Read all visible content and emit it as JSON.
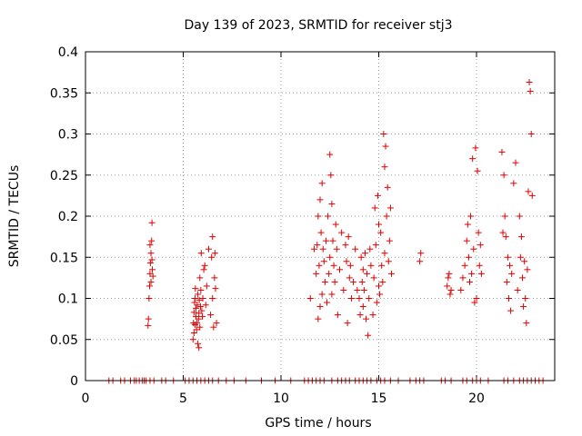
{
  "chart_data": {
    "type": "scatter",
    "title": "Day 139 of 2023, SRMTID for receiver stj3",
    "xlabel": "GPS time / hours",
    "ylabel": "SRMTID / TECUs",
    "xlim": [
      0,
      24
    ],
    "ylim": [
      0,
      0.4
    ],
    "xticks": [
      0,
      5,
      10,
      15,
      20
    ],
    "xtick_labels": [
      "0",
      "5",
      "10",
      "15",
      "20"
    ],
    "yticks": [
      0,
      0.05,
      0.1,
      0.15,
      0.2,
      0.25,
      0.3,
      0.35,
      0.4
    ],
    "ytick_labels": [
      "0",
      "0.05",
      "0.1",
      "0.15",
      "0.2",
      "0.25",
      "0.3",
      "0.35",
      "0.4"
    ],
    "grid": true,
    "marker": "+",
    "color": "#e00000",
    "series": [
      {
        "x": [
          3.2,
          3.22,
          3.25,
          3.28,
          3.3,
          3.3,
          3.32,
          3.35,
          3.35,
          3.38,
          3.4,
          3.4,
          3.42,
          3.45,
          5.5,
          5.52,
          5.55,
          5.55,
          5.58,
          5.6,
          5.6,
          5.62,
          5.65,
          5.65,
          5.68,
          5.7,
          5.72,
          5.75,
          5.75,
          5.78,
          5.8,
          5.8,
          5.82,
          5.85,
          5.85,
          5.88,
          5.9,
          5.92,
          5.95,
          5.98,
          6.0,
          6.05,
          6.1,
          6.15,
          6.2,
          6.3,
          6.4,
          6.45,
          6.5,
          6.5,
          6.55,
          6.6,
          6.62,
          6.65,
          6.7,
          11.5,
          11.7,
          11.8,
          11.85,
          11.9,
          11.9,
          11.95,
          12.0,
          12.0,
          12.05,
          12.1,
          12.1,
          12.15,
          12.2,
          12.25,
          12.3,
          12.35,
          12.4,
          12.45,
          12.5,
          12.5,
          12.55,
          12.6,
          12.6,
          12.65,
          12.7,
          12.75,
          12.8,
          12.85,
          12.9,
          13.0,
          13.1,
          13.2,
          13.3,
          13.35,
          13.4,
          13.45,
          13.5,
          13.55,
          13.6,
          13.7,
          13.8,
          13.9,
          14.0,
          14.05,
          14.1,
          14.15,
          14.2,
          14.2,
          14.25,
          14.3,
          14.35,
          14.4,
          14.45,
          14.5,
          14.55,
          14.6,
          14.7,
          14.75,
          14.8,
          14.85,
          14.9,
          14.95,
          15.0,
          15.0,
          15.05,
          15.1,
          15.15,
          15.2,
          15.25,
          15.3,
          15.3,
          15.35,
          15.4,
          15.45,
          15.5,
          15.55,
          15.6,
          15.65,
          17.1,
          17.15,
          18.5,
          18.55,
          18.6,
          18.65,
          18.7,
          19.2,
          19.3,
          19.4,
          19.5,
          19.55,
          19.6,
          19.65,
          19.7,
          19.75,
          19.8,
          19.85,
          19.9,
          19.95,
          20.0,
          20.05,
          20.1,
          20.15,
          20.2,
          20.25,
          21.3,
          21.35,
          21.4,
          21.45,
          21.5,
          21.55,
          21.6,
          21.65,
          21.7,
          21.75,
          21.8,
          21.9,
          22.0,
          22.1,
          22.2,
          22.25,
          22.3,
          22.35,
          22.4,
          22.45,
          22.5,
          22.55,
          22.6,
          22.65,
          22.7,
          22.75,
          22.8,
          22.85
        ],
        "y": [
          0.067,
          0.075,
          0.1,
          0.115,
          0.13,
          0.165,
          0.143,
          0.155,
          0.12,
          0.17,
          0.192,
          0.147,
          0.135,
          0.127,
          0.05,
          0.07,
          0.083,
          0.058,
          0.095,
          0.1,
          0.068,
          0.112,
          0.088,
          0.078,
          0.062,
          0.07,
          0.092,
          0.045,
          0.105,
          0.075,
          0.04,
          0.082,
          0.098,
          0.065,
          0.125,
          0.09,
          0.11,
          0.155,
          0.085,
          0.078,
          0.1,
          0.135,
          0.14,
          0.092,
          0.115,
          0.16,
          0.08,
          0.15,
          0.175,
          0.1,
          0.065,
          0.125,
          0.155,
          0.112,
          0.07,
          0.1,
          0.16,
          0.13,
          0.165,
          0.2,
          0.075,
          0.14,
          0.22,
          0.09,
          0.18,
          0.24,
          0.105,
          0.16,
          0.145,
          0.12,
          0.17,
          0.095,
          0.2,
          0.13,
          0.275,
          0.15,
          0.25,
          0.215,
          0.105,
          0.17,
          0.14,
          0.12,
          0.19,
          0.16,
          0.08,
          0.135,
          0.18,
          0.11,
          0.165,
          0.145,
          0.07,
          0.175,
          0.125,
          0.14,
          0.1,
          0.12,
          0.16,
          0.11,
          0.1,
          0.08,
          0.15,
          0.12,
          0.09,
          0.135,
          0.11,
          0.155,
          0.075,
          0.13,
          0.055,
          0.1,
          0.16,
          0.14,
          0.08,
          0.125,
          0.21,
          0.165,
          0.095,
          0.225,
          0.19,
          0.115,
          0.105,
          0.18,
          0.14,
          0.12,
          0.3,
          0.26,
          0.155,
          0.285,
          0.2,
          0.235,
          0.145,
          0.17,
          0.21,
          0.13,
          0.145,
          0.155,
          0.115,
          0.125,
          0.13,
          0.105,
          0.11,
          0.11,
          0.125,
          0.14,
          0.17,
          0.19,
          0.15,
          0.12,
          0.2,
          0.13,
          0.27,
          0.16,
          0.095,
          0.283,
          0.1,
          0.255,
          0.18,
          0.14,
          0.165,
          0.13,
          0.278,
          0.18,
          0.25,
          0.2,
          0.175,
          0.12,
          0.15,
          0.1,
          0.14,
          0.085,
          0.13,
          0.24,
          0.265,
          0.11,
          0.2,
          0.15,
          0.175,
          0.125,
          0.09,
          0.145,
          0.1,
          0.07,
          0.135,
          0.23,
          0.363,
          0.352,
          0.3,
          0.225
        ]
      },
      {
        "x": [
          1.2,
          1.4,
          1.8,
          2.0,
          2.3,
          2.5,
          2.6,
          2.75,
          2.9,
          3.0,
          3.1,
          3.3,
          3.5,
          3.9,
          4.1,
          4.5,
          5.1,
          5.3,
          5.5,
          5.7,
          5.9,
          6.1,
          6.3,
          6.5,
          6.8,
          7.2,
          7.6,
          8.2,
          9.0,
          9.7,
          10.5,
          11.2,
          11.4,
          11.6,
          11.8,
          12.0,
          12.2,
          12.6,
          12.9,
          13.1,
          13.3,
          13.5,
          13.8,
          14.0,
          14.2,
          14.4,
          14.6,
          14.9,
          15.1,
          15.3,
          15.6,
          16.0,
          16.6,
          16.9,
          17.1,
          17.3,
          18.2,
          18.4,
          18.7,
          19.3,
          19.5,
          19.8,
          20.0,
          20.2,
          20.6,
          21.4,
          21.6,
          21.9,
          22.2,
          22.4,
          22.6,
          22.8,
          23.0,
          23.2,
          23.4
        ],
        "y": [
          0,
          0,
          0,
          0,
          0,
          0,
          0,
          0,
          0,
          0,
          0,
          0,
          0,
          0,
          0,
          0,
          0,
          0,
          0,
          0,
          0,
          0,
          0,
          0,
          0,
          0,
          0,
          0,
          0,
          0,
          0,
          0,
          0,
          0,
          0,
          0,
          0,
          0,
          0,
          0,
          0,
          0,
          0,
          0,
          0,
          0,
          0,
          0,
          0,
          0,
          0,
          0,
          0,
          0,
          0,
          0,
          0,
          0,
          0,
          0,
          0,
          0,
          0,
          0,
          0,
          0,
          0,
          0,
          0,
          0,
          0,
          0,
          0,
          0,
          0
        ]
      }
    ]
  }
}
